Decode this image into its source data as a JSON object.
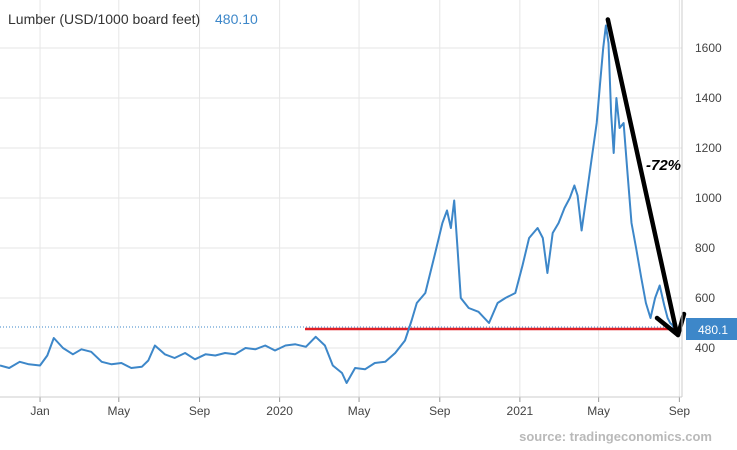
{
  "chart_data": {
    "type": "line",
    "title": "Lumber (USD/1000 board feet)",
    "last_value": "480.10",
    "last_value_badge": "480.1",
    "source": "source: tradingeconomics.com",
    "annotation": "-72%",
    "x_range": [
      "2018-11-01",
      "2021-09-05"
    ],
    "ylim": [
      300,
      1760
    ],
    "y_ticks": [
      400,
      600,
      800,
      1000,
      1200,
      1400,
      1600
    ],
    "x_ticks": [
      {
        "date": "2019-01-01",
        "label": "Jan"
      },
      {
        "date": "2019-05-01",
        "label": "May"
      },
      {
        "date": "2019-09-01",
        "label": "Sep"
      },
      {
        "date": "2020-01-01",
        "label": "2020"
      },
      {
        "date": "2020-05-01",
        "label": "May"
      },
      {
        "date": "2020-09-01",
        "label": "Sep"
      },
      {
        "date": "2021-01-01",
        "label": "2021"
      },
      {
        "date": "2021-05-01",
        "label": "May"
      },
      {
        "date": "2021-09-01",
        "label": "Sep"
      }
    ],
    "series": [
      {
        "color": "#3d87c9",
        "points": [
          [
            "2018-11-01",
            330
          ],
          [
            "2018-11-15",
            320
          ],
          [
            "2018-12-01",
            345
          ],
          [
            "2018-12-15",
            335
          ],
          [
            "2019-01-01",
            330
          ],
          [
            "2019-01-12",
            370
          ],
          [
            "2019-01-22",
            440
          ],
          [
            "2019-02-05",
            400
          ],
          [
            "2019-02-20",
            375
          ],
          [
            "2019-03-05",
            395
          ],
          [
            "2019-03-20",
            385
          ],
          [
            "2019-04-05",
            345
          ],
          [
            "2019-04-20",
            335
          ],
          [
            "2019-05-05",
            340
          ],
          [
            "2019-05-20",
            320
          ],
          [
            "2019-06-05",
            325
          ],
          [
            "2019-06-15",
            350
          ],
          [
            "2019-06-25",
            410
          ],
          [
            "2019-07-10",
            375
          ],
          [
            "2019-07-25",
            360
          ],
          [
            "2019-08-10",
            380
          ],
          [
            "2019-08-25",
            355
          ],
          [
            "2019-09-10",
            375
          ],
          [
            "2019-09-25",
            370
          ],
          [
            "2019-10-10",
            380
          ],
          [
            "2019-10-25",
            375
          ],
          [
            "2019-11-10",
            400
          ],
          [
            "2019-11-25",
            395
          ],
          [
            "2019-12-10",
            410
          ],
          [
            "2019-12-25",
            390
          ],
          [
            "2020-01-10",
            410
          ],
          [
            "2020-01-25",
            415
          ],
          [
            "2020-02-10",
            405
          ],
          [
            "2020-02-25",
            445
          ],
          [
            "2020-03-10",
            410
          ],
          [
            "2020-03-22",
            330
          ],
          [
            "2020-04-05",
            300
          ],
          [
            "2020-04-12",
            260
          ],
          [
            "2020-04-25",
            320
          ],
          [
            "2020-05-10",
            315
          ],
          [
            "2020-05-25",
            340
          ],
          [
            "2020-06-10",
            345
          ],
          [
            "2020-06-25",
            380
          ],
          [
            "2020-07-10",
            430
          ],
          [
            "2020-07-20",
            510
          ],
          [
            "2020-07-28",
            580
          ],
          [
            "2020-08-10",
            620
          ],
          [
            "2020-08-25",
            780
          ],
          [
            "2020-09-05",
            900
          ],
          [
            "2020-09-12",
            950
          ],
          [
            "2020-09-18",
            880
          ],
          [
            "2020-09-23",
            990
          ],
          [
            "2020-09-28",
            800
          ],
          [
            "2020-10-03",
            600
          ],
          [
            "2020-10-15",
            560
          ],
          [
            "2020-10-30",
            545
          ],
          [
            "2020-11-15",
            500
          ],
          [
            "2020-11-28",
            580
          ],
          [
            "2020-12-10",
            600
          ],
          [
            "2020-12-25",
            620
          ],
          [
            "2021-01-05",
            730
          ],
          [
            "2021-01-15",
            840
          ],
          [
            "2021-01-28",
            880
          ],
          [
            "2021-02-05",
            840
          ],
          [
            "2021-02-12",
            700
          ],
          [
            "2021-02-20",
            860
          ],
          [
            "2021-03-01",
            900
          ],
          [
            "2021-03-10",
            960
          ],
          [
            "2021-03-18",
            1000
          ],
          [
            "2021-03-25",
            1050
          ],
          [
            "2021-03-30",
            1010
          ],
          [
            "2021-04-05",
            870
          ],
          [
            "2021-04-12",
            1000
          ],
          [
            "2021-04-20",
            1150
          ],
          [
            "2021-04-28",
            1300
          ],
          [
            "2021-05-03",
            1450
          ],
          [
            "2021-05-08",
            1600
          ],
          [
            "2021-05-12",
            1690
          ],
          [
            "2021-05-16",
            1620
          ],
          [
            "2021-05-20",
            1340
          ],
          [
            "2021-05-24",
            1180
          ],
          [
            "2021-05-28",
            1400
          ],
          [
            "2021-06-02",
            1280
          ],
          [
            "2021-06-08",
            1300
          ],
          [
            "2021-06-14",
            1100
          ],
          [
            "2021-06-20",
            900
          ],
          [
            "2021-06-27",
            800
          ],
          [
            "2021-07-05",
            680
          ],
          [
            "2021-07-12",
            580
          ],
          [
            "2021-07-19",
            520
          ],
          [
            "2021-07-26",
            600
          ],
          [
            "2021-08-02",
            650
          ],
          [
            "2021-08-09",
            570
          ],
          [
            "2021-08-14",
            520
          ],
          [
            "2021-08-18",
            500
          ],
          [
            "2021-08-22",
            490
          ],
          [
            "2021-08-27",
            470
          ],
          [
            "2021-09-01",
            480
          ]
        ]
      }
    ]
  }
}
